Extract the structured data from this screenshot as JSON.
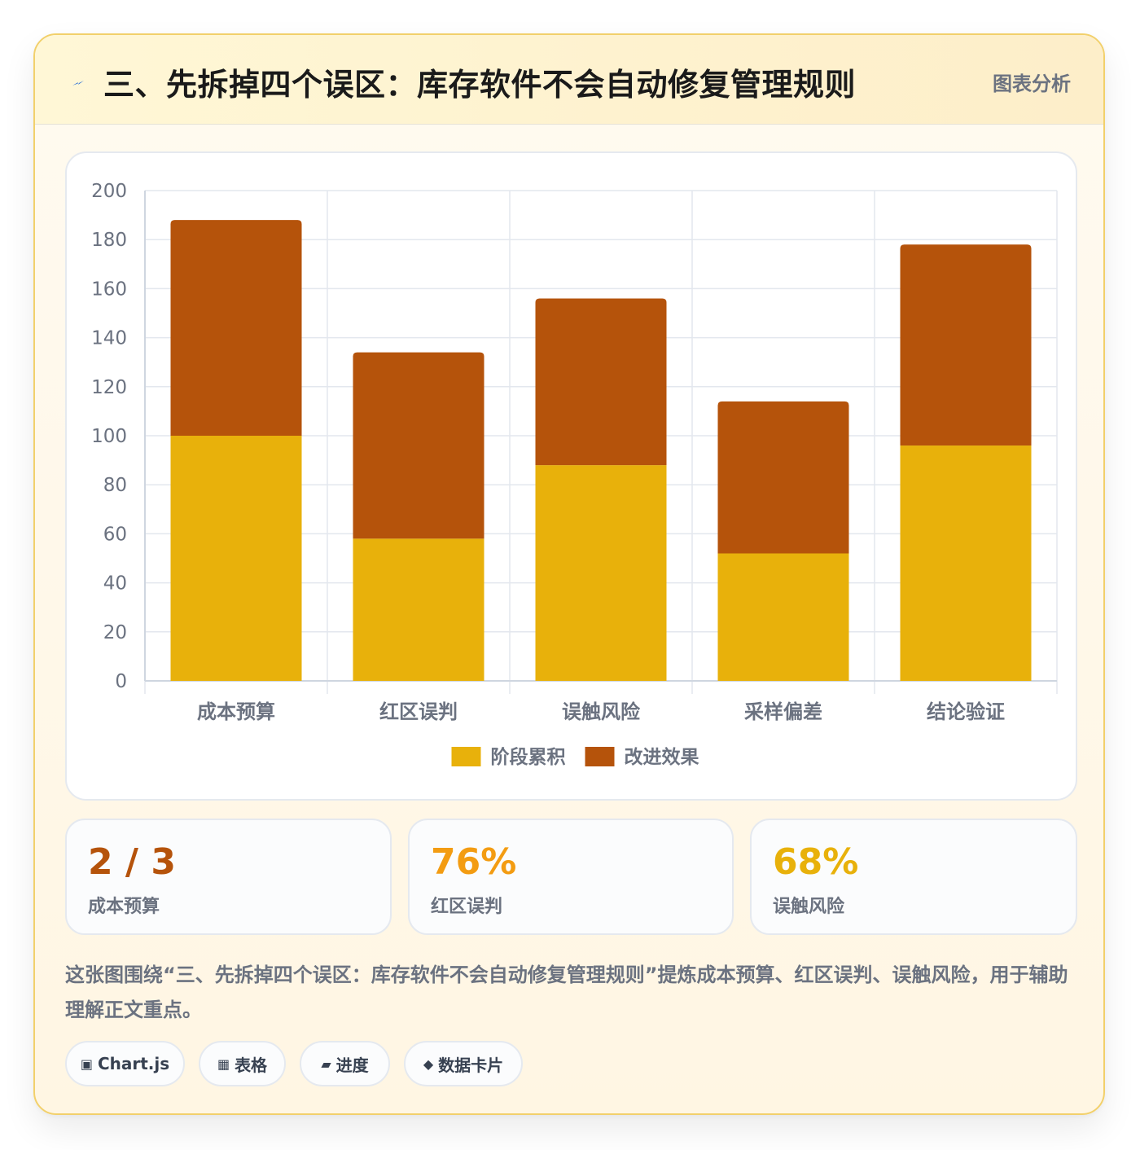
{
  "header": {
    "title": "三、先拆掉四个误区：库存软件不会自动修复管理规则",
    "tag": "图表分析",
    "icon": "bolt-icon"
  },
  "chart_data": {
    "type": "bar",
    "stacked": true,
    "categories": [
      "成本预算",
      "红区误判",
      "误触风险",
      "采样偏差",
      "结论验证"
    ],
    "series": [
      {
        "name": "阶段累积",
        "values": [
          100,
          58,
          88,
          52,
          96
        ],
        "color": "#e8b10b"
      },
      {
        "name": "改进效果",
        "values": [
          88,
          76,
          68,
          62,
          82
        ],
        "color": "#b5530b"
      }
    ],
    "ylim": [
      0,
      200
    ],
    "yticks": [
      0,
      20,
      40,
      60,
      80,
      100,
      120,
      140,
      160,
      180,
      200
    ],
    "grid": true,
    "legend": "bottom"
  },
  "kpis": [
    {
      "value": "2 / 3",
      "label": "成本预算",
      "color": "#b5530b"
    },
    {
      "value": "76%",
      "label": "红区误判",
      "color": "#f39c12"
    },
    {
      "value": "68%",
      "label": "误触风险",
      "color": "#e8b10b"
    }
  ],
  "description": "这张图围绕“三、先拆掉四个误区：库存软件不会自动修复管理规则”提炼成本预算、红区误判、误触风险，用于辅助理解正文重点。",
  "tags": [
    {
      "icon": "▣",
      "label": "Chart.js"
    },
    {
      "icon": "▦",
      "label": "表格"
    },
    {
      "icon": "▰",
      "label": "进度"
    },
    {
      "icon": "◆",
      "label": "数据卡片"
    }
  ]
}
